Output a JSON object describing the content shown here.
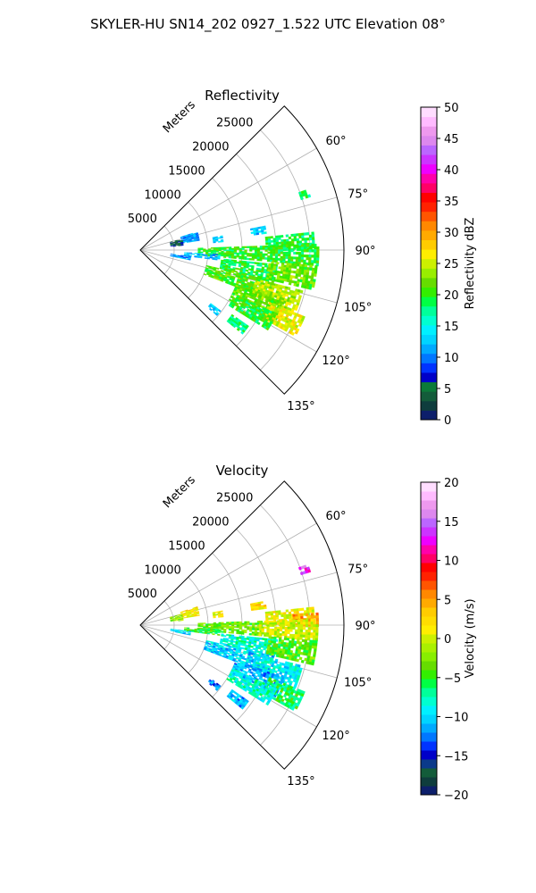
{
  "figure": {
    "title": "SKYLER-HU  SN14_202  0927_1.522 UTC Elevation 08°"
  },
  "chart_data": [
    {
      "type": "heatmap",
      "projection": "polar-sector",
      "title": "Reflectivity",
      "radial_axis_label": "Meters",
      "radial_ticks": [
        5000,
        10000,
        15000,
        20000,
        25000
      ],
      "radial_tick_labels": [
        "5000",
        "10000",
        "15000",
        "20000",
        "25000"
      ],
      "rmax": 30000,
      "azimuth_range_deg": [
        45,
        135
      ],
      "azimuth_ticks": [
        60,
        75,
        90,
        105,
        120,
        135
      ],
      "azimuth_tick_labels": [
        "60°",
        "75°",
        "90°",
        "105°",
        "120°",
        "135°"
      ],
      "grid": true,
      "colorbar": {
        "label": "Reflectivity dBZ",
        "vmin": 0,
        "vmax": 50,
        "ticks": [
          0,
          5,
          10,
          15,
          20,
          25,
          30,
          35,
          40,
          45,
          50
        ],
        "tick_labels": [
          "0",
          "5",
          "10",
          "15",
          "20",
          "25",
          "30",
          "35",
          "40",
          "45",
          "50"
        ],
        "colors": [
          "#0d1f6b",
          "#0f3d3d",
          "#135c3a",
          "#0b7a39",
          "#0000c8",
          "#0033ff",
          "#0077ff",
          "#00aaff",
          "#00d4ff",
          "#00f0ff",
          "#00ffd0",
          "#00ff9a",
          "#00ff44",
          "#33ee00",
          "#66dd00",
          "#99ee00",
          "#ccf000",
          "#ffee00",
          "#ffcc00",
          "#ffaa00",
          "#ff8800",
          "#ff5500",
          "#ff2200",
          "#ff0000",
          "#ff0066",
          "#ff00aa",
          "#ee00ff",
          "#cc33ff",
          "#bb66ff",
          "#dd88ee",
          "#ee99ee",
          "#ffbbff",
          "#ffddff"
        ]
      },
      "echo_regions": [
        {
          "az": [
            70,
            72
          ],
          "r": [
            24800,
            26000
          ],
          "value": 18
        },
        {
          "az": [
            72,
            81
          ],
          "r": [
            6200,
            8600
          ],
          "value": 11
        },
        {
          "az": [
            75,
            84
          ],
          "r": [
            4500,
            6200
          ],
          "value": 5
        },
        {
          "az": [
            80,
            84
          ],
          "r": [
            10800,
            12200
          ],
          "value": 13
        },
        {
          "az": [
            79,
            82
          ],
          "r": [
            16500,
            18500
          ],
          "value": 13
        },
        {
          "az": [
            84,
            90
          ],
          "r": [
            18500,
            25500
          ],
          "value": 19
        },
        {
          "az": [
            88,
            95
          ],
          "r": [
            8500,
            26000
          ],
          "value": 20
        },
        {
          "az": [
            93,
            97
          ],
          "r": [
            6500,
            11500
          ],
          "value": 12
        },
        {
          "az": [
            97,
            101
          ],
          "r": [
            4500,
            7500
          ],
          "value": 11
        },
        {
          "az": [
            96,
            103
          ],
          "r": [
            12000,
            20000
          ],
          "value": 19
        },
        {
          "az": [
            95,
            103
          ],
          "r": [
            19000,
            26000
          ],
          "value": 22
        },
        {
          "az": [
            103,
            111
          ],
          "r": [
            10000,
            20000
          ],
          "value": 21
        },
        {
          "az": [
            104,
            112
          ],
          "r": [
            17500,
            24500
          ],
          "value": 24
        },
        {
          "az": [
            110,
            118
          ],
          "r": [
            15000,
            22500
          ],
          "value": 22
        },
        {
          "az": [
            112,
            119
          ],
          "r": [
            20500,
            26000
          ],
          "value": 26
        },
        {
          "az": [
            115,
            122
          ],
          "r": [
            15000,
            22000
          ],
          "value": 20
        },
        {
          "az": [
            125,
            129
          ],
          "r": [
            16500,
            19500
          ],
          "value": 18
        },
        {
          "az": [
            127,
            130
          ],
          "r": [
            13000,
            14800
          ],
          "value": 13
        }
      ]
    },
    {
      "type": "heatmap",
      "projection": "polar-sector",
      "title": "Velocity",
      "radial_axis_label": "Meters",
      "radial_ticks": [
        5000,
        10000,
        15000,
        20000,
        25000
      ],
      "radial_tick_labels": [
        "5000",
        "10000",
        "15000",
        "20000",
        "25000"
      ],
      "rmax": 30000,
      "azimuth_range_deg": [
        45,
        135
      ],
      "azimuth_ticks": [
        60,
        75,
        90,
        105,
        120,
        135
      ],
      "azimuth_tick_labels": [
        "60°",
        "75°",
        "90°",
        "105°",
        "120°",
        "135°"
      ],
      "grid": true,
      "colorbar": {
        "label": "Velocity (m/s)",
        "vmin": -20,
        "vmax": 20,
        "ticks": [
          -20,
          -15,
          -10,
          -5,
          0,
          5,
          10,
          15,
          20
        ],
        "tick_labels": [
          "−20",
          "−15",
          "−10",
          "−5",
          "0",
          "5",
          "10",
          "15",
          "20"
        ],
        "colors": [
          "#0d1f6b",
          "#0f3d3d",
          "#135c3a",
          "#0b3a8a",
          "#0000c8",
          "#0033ff",
          "#0077ff",
          "#00aaff",
          "#00d4ff",
          "#00f0ff",
          "#00ffd0",
          "#00ff9a",
          "#00ff44",
          "#33ee00",
          "#66dd00",
          "#88ee00",
          "#aaf000",
          "#ccf000",
          "#ffee00",
          "#ffdd00",
          "#ffcc00",
          "#ffaa00",
          "#ff8800",
          "#ff5500",
          "#ff2200",
          "#ff0000",
          "#ff0066",
          "#ff00aa",
          "#ee00ff",
          "#cc33ff",
          "#bb66ff",
          "#dd88ee",
          "#ee99ee",
          "#ffbbff",
          "#ffddff"
        ]
      },
      "echo_regions": [
        {
          "az": [
            70,
            72
          ],
          "r": [
            24800,
            26000
          ],
          "value": 14
        },
        {
          "az": [
            72,
            81
          ],
          "r": [
            6200,
            8600
          ],
          "value": 2
        },
        {
          "az": [
            75,
            84
          ],
          "r": [
            4500,
            6200
          ],
          "value": -2
        },
        {
          "az": [
            80,
            84
          ],
          "r": [
            10800,
            12200
          ],
          "value": 1
        },
        {
          "az": [
            79,
            82
          ],
          "r": [
            16500,
            18500
          ],
          "value": 2
        },
        {
          "az": [
            84,
            90
          ],
          "r": [
            18500,
            25500
          ],
          "value": 1
        },
        {
          "az": [
            86,
            90
          ],
          "r": [
            22500,
            26000
          ],
          "value": 5
        },
        {
          "az": [
            88,
            95
          ],
          "r": [
            8500,
            18000
          ],
          "value": -3
        },
        {
          "az": [
            88,
            95
          ],
          "r": [
            17500,
            26000
          ],
          "value": 0
        },
        {
          "az": [
            93,
            97
          ],
          "r": [
            6500,
            11500
          ],
          "value": -5
        },
        {
          "az": [
            97,
            101
          ],
          "r": [
            4500,
            7500
          ],
          "value": -10
        },
        {
          "az": [
            96,
            103
          ],
          "r": [
            12000,
            20000
          ],
          "value": -8
        },
        {
          "az": [
            95,
            103
          ],
          "r": [
            19000,
            26000
          ],
          "value": -4
        },
        {
          "az": [
            103,
            111
          ],
          "r": [
            10000,
            20000
          ],
          "value": -10
        },
        {
          "az": [
            104,
            112
          ],
          "r": [
            17500,
            24500
          ],
          "value": -9
        },
        {
          "az": [
            110,
            118
          ],
          "r": [
            15000,
            22500
          ],
          "value": -11
        },
        {
          "az": [
            112,
            119
          ],
          "r": [
            20500,
            26000
          ],
          "value": -6
        },
        {
          "az": [
            115,
            122
          ],
          "r": [
            15000,
            22000
          ],
          "value": -8
        },
        {
          "az": [
            125,
            129
          ],
          "r": [
            16500,
            19500
          ],
          "value": -11
        },
        {
          "az": [
            127,
            130
          ],
          "r": [
            13000,
            14800
          ],
          "value": -13
        }
      ]
    }
  ]
}
